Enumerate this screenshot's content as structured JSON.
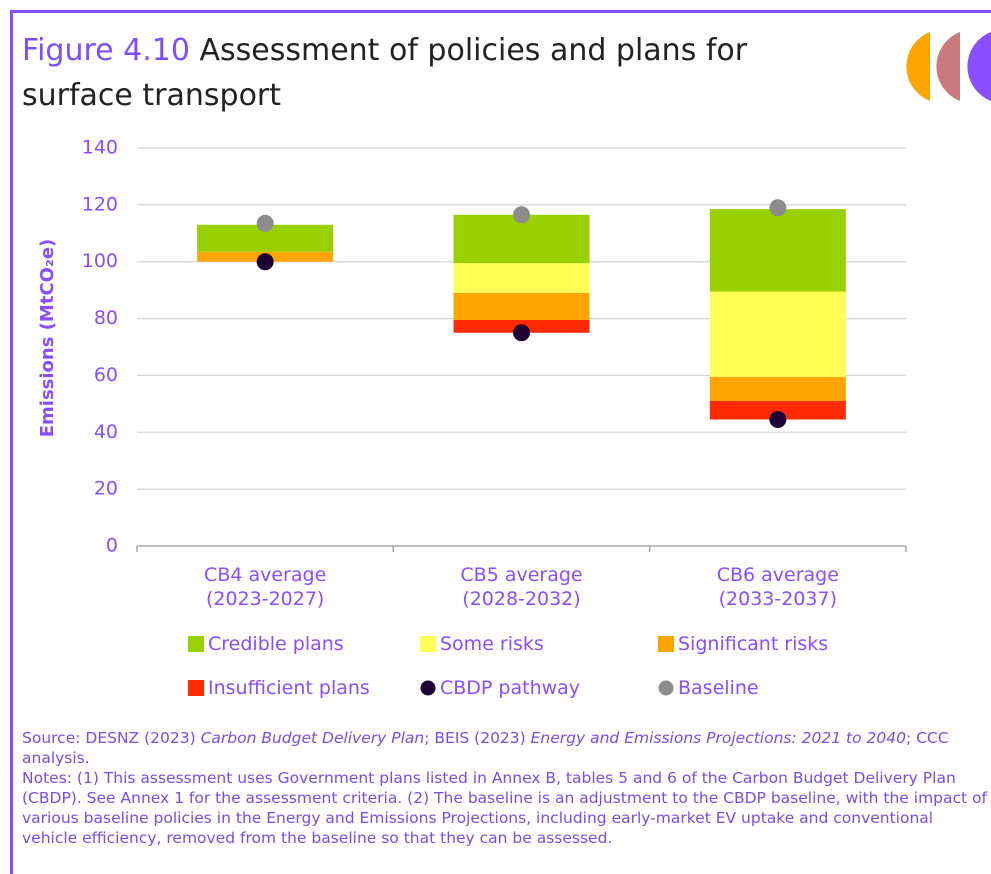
{
  "figure_label": "Figure 4.10",
  "chart_data": {
    "type": "bar",
    "title": "Assessment of policies and plans for surface transport",
    "y_label": "Emissions (MtCO₂e)",
    "categories": [
      "CB4 average (2023-2027)",
      "CB5 average (2028-2032)",
      "CB6 average (2033-2037)"
    ],
    "ylim": [
      0,
      140
    ],
    "yticks": [
      0,
      20,
      40,
      60,
      80,
      100,
      120,
      140
    ],
    "grid": true,
    "series": [
      {
        "name": "Credible plans",
        "color": "#99d100",
        "values": [
          9.5,
          17,
          29
        ]
      },
      {
        "name": "Some risks",
        "color": "#ffff55",
        "values": [
          0,
          10.5,
          30
        ]
      },
      {
        "name": "Significant risks",
        "color": "#ffa500",
        "values": [
          3.5,
          9.5,
          8.5
        ]
      },
      {
        "name": "Insufficient plans",
        "color": "#ff2a00",
        "values": [
          0,
          4.5,
          6.5
        ]
      },
      {
        "name": "CBDP pathway",
        "color": "#1e0033",
        "type": "scatter",
        "values": [
          100,
          75,
          44.5
        ]
      },
      {
        "name": "Baseline",
        "color": "#8c8c8c",
        "type": "scatter",
        "values": [
          113.5,
          116.5,
          119
        ]
      }
    ]
  },
  "source_parts": [
    {
      "text": "Source: DESNZ (2023) ",
      "italic": false
    },
    {
      "text": "Carbon Budget Delivery Plan",
      "italic": true
    },
    {
      "text": "; BEIS (2023) ",
      "italic": false
    },
    {
      "text": "Energy and Emissions Projections: 2021 to 2040",
      "italic": true
    },
    {
      "text": "; CCC analysis.",
      "italic": false
    }
  ],
  "notes": "Notes: (1) This assessment uses Government plans listed in Annex B, tables 5 and 6 of the Carbon Budget Delivery Plan (CBDP). See Annex 1 for the assessment criteria. (2) The baseline is an adjustment to the CBDP baseline, with the impact of various baseline policies in the Energy and Emissions Projections, including early-market EV uptake and conventional vehicle efficiency, removed from the baseline so that they can be assessed."
}
